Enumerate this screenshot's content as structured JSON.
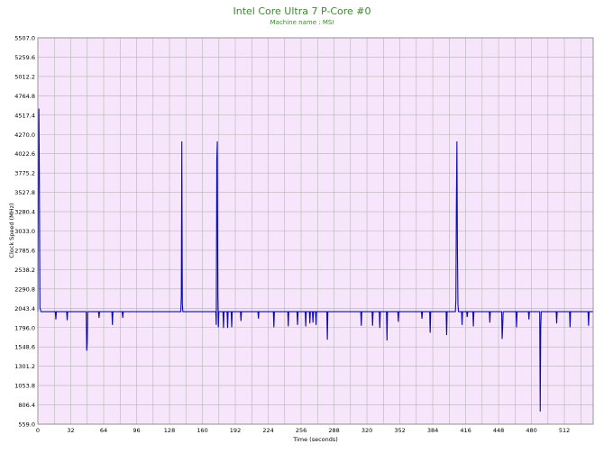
{
  "chart_data": {
    "type": "line",
    "title": "Intel Core Ultra 7 P-Core #0",
    "subtitle": "Machine name : MSI",
    "xlabel": "Time (seconds)",
    "ylabel": "Clock Speed (MHz)",
    "xlim": [
      0,
      540
    ],
    "ylim": [
      559.0,
      5507.0
    ],
    "x_ticks": [
      0,
      32,
      64,
      96,
      128,
      160,
      192,
      224,
      256,
      288,
      320,
      352,
      384,
      416,
      448,
      480,
      512
    ],
    "y_ticks": [
      "559.0",
      "806.4",
      "1053.8",
      "1301.2",
      "1548.6",
      "1796.0",
      "2043.4",
      "2290.8",
      "2538.2",
      "2785.6",
      "3033.0",
      "3280.4",
      "3527.8",
      "3775.2",
      "4022.6",
      "4270.0",
      "4517.4",
      "4764.8",
      "5012.2",
      "5259.6",
      "5507.0"
    ],
    "grid": true,
    "colors": {
      "background": "#f7e6fb",
      "grid": "#b4b4b4",
      "line": "#0a0ab4",
      "title": "#3b8a2a"
    },
    "baseline": 2000,
    "series": [
      {
        "name": "",
        "points": [
          [
            0,
            2000
          ],
          [
            0.5,
            3700
          ],
          [
            1,
            4600
          ],
          [
            1.5,
            3650
          ],
          [
            2,
            2050
          ],
          [
            3,
            2000
          ],
          [
            17,
            2000
          ],
          [
            17.5,
            1900
          ],
          [
            18,
            2000
          ],
          [
            28,
            2000
          ],
          [
            28.5,
            1890
          ],
          [
            29,
            2000
          ],
          [
            47,
            2000
          ],
          [
            47.5,
            1500
          ],
          [
            48,
            1600
          ],
          [
            48.5,
            2000
          ],
          [
            59,
            2000
          ],
          [
            59.5,
            1920
          ],
          [
            60,
            2000
          ],
          [
            72,
            2000
          ],
          [
            72.5,
            1830
          ],
          [
            73,
            2000
          ],
          [
            82,
            2000
          ],
          [
            82.5,
            1920
          ],
          [
            83,
            2000
          ],
          [
            139,
            2000
          ],
          [
            139.5,
            2200
          ],
          [
            140,
            4180
          ],
          [
            140.5,
            2100
          ],
          [
            141,
            2000
          ],
          [
            173,
            2000
          ],
          [
            173.5,
            1830
          ],
          [
            174,
            3950
          ],
          [
            174.5,
            4180
          ],
          [
            175,
            2200
          ],
          [
            175.5,
            1800
          ],
          [
            176,
            2000
          ],
          [
            180,
            2000
          ],
          [
            180.5,
            1790
          ],
          [
            181,
            2000
          ],
          [
            184,
            2000
          ],
          [
            184.5,
            1790
          ],
          [
            185,
            2000
          ],
          [
            188,
            2000
          ],
          [
            188.5,
            1800
          ],
          [
            189,
            2000
          ],
          [
            197,
            2000
          ],
          [
            197.5,
            1880
          ],
          [
            198,
            2000
          ],
          [
            214,
            2000
          ],
          [
            214.5,
            1910
          ],
          [
            215,
            2000
          ],
          [
            229,
            2000
          ],
          [
            229.5,
            1800
          ],
          [
            230,
            2000
          ],
          [
            243,
            2000
          ],
          [
            243.5,
            1810
          ],
          [
            244,
            2000
          ],
          [
            252,
            2000
          ],
          [
            252.5,
            1830
          ],
          [
            253,
            2000
          ],
          [
            260,
            2000
          ],
          [
            260.5,
            1810
          ],
          [
            261,
            2000
          ],
          [
            264,
            2000
          ],
          [
            264.5,
            1850
          ],
          [
            265,
            2000
          ],
          [
            267,
            2000
          ],
          [
            267.5,
            1860
          ],
          [
            268,
            2000
          ],
          [
            270,
            2000
          ],
          [
            270.5,
            1830
          ],
          [
            271,
            2000
          ],
          [
            281,
            2000
          ],
          [
            281.5,
            1640
          ],
          [
            282,
            2000
          ],
          [
            314,
            2000
          ],
          [
            314.5,
            1820
          ],
          [
            315,
            2000
          ],
          [
            325,
            2000
          ],
          [
            325.5,
            1820
          ],
          [
            326,
            2000
          ],
          [
            332,
            2000
          ],
          [
            332.5,
            1790
          ],
          [
            333,
            2000
          ],
          [
            339,
            2000
          ],
          [
            339.5,
            1630
          ],
          [
            340,
            2000
          ],
          [
            350,
            2000
          ],
          [
            350.5,
            1870
          ],
          [
            351,
            2000
          ],
          [
            373,
            2000
          ],
          [
            373.5,
            1910
          ],
          [
            374,
            2000
          ],
          [
            381,
            2000
          ],
          [
            381.5,
            1730
          ],
          [
            382,
            2000
          ],
          [
            397,
            2000
          ],
          [
            397.5,
            1700
          ],
          [
            398,
            2000
          ],
          [
            406,
            2000
          ],
          [
            406.5,
            2150
          ],
          [
            407,
            3400
          ],
          [
            407.5,
            4180
          ],
          [
            408,
            2800
          ],
          [
            408.5,
            2100
          ],
          [
            409,
            2000
          ],
          [
            412,
            2000
          ],
          [
            412.5,
            1830
          ],
          [
            413,
            2000
          ],
          [
            417,
            2000
          ],
          [
            417.5,
            1930
          ],
          [
            418,
            2000
          ],
          [
            423,
            2000
          ],
          [
            423.5,
            1810
          ],
          [
            424,
            2000
          ],
          [
            439,
            2000
          ],
          [
            439.5,
            1860
          ],
          [
            440,
            2000
          ],
          [
            451,
            2000
          ],
          [
            451.5,
            1650
          ],
          [
            452,
            1800
          ],
          [
            452.5,
            2000
          ],
          [
            465,
            2000
          ],
          [
            465.5,
            1800
          ],
          [
            466,
            2000
          ],
          [
            477,
            2000
          ],
          [
            477.5,
            1900
          ],
          [
            478,
            2000
          ],
          [
            488,
            2000
          ],
          [
            488.5,
            720
          ],
          [
            489,
            1800
          ],
          [
            489.5,
            2000
          ],
          [
            504,
            2000
          ],
          [
            504.5,
            1850
          ],
          [
            505,
            2000
          ],
          [
            517,
            2000
          ],
          [
            517.5,
            1800
          ],
          [
            518,
            2000
          ],
          [
            535,
            2000
          ],
          [
            535.5,
            1820
          ],
          [
            536,
            2000
          ],
          [
            540,
            2000
          ]
        ]
      }
    ]
  }
}
